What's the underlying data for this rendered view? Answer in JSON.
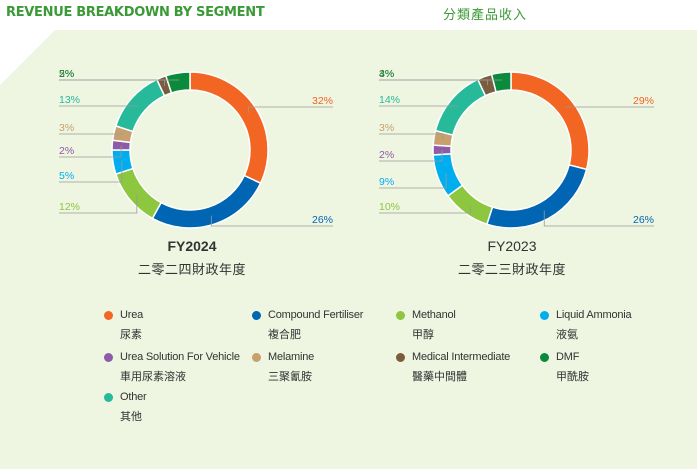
{
  "header": {
    "title_en": "REVENUE BREAKDOWN BY SEGMENT",
    "title_zh": "分類產品收入"
  },
  "chart_data": [
    {
      "type": "donut",
      "year_label": "FY2024",
      "year_label_zh": "二零二四財政年度",
      "order": [
        "Urea",
        "Compound Fertiliser",
        "Methanol",
        "Liquid Ammonia",
        "Urea Solution For Vehicle",
        "Melamine",
        "Other",
        "Medical Intermediate",
        "DMF"
      ],
      "values": [
        32,
        26,
        12,
        5,
        2,
        3,
        13,
        2,
        5
      ],
      "labels": [
        "32%",
        "26%",
        "12%",
        "5%",
        "2%",
        "3%",
        "13%",
        "2%",
        "5%"
      ]
    },
    {
      "type": "donut",
      "year_label": "FY2023",
      "year_label_zh": "二零二三財政年度",
      "order": [
        "Urea",
        "Compound Fertiliser",
        "Methanol",
        "Liquid Ammonia",
        "Urea Solution For Vehicle",
        "Melamine",
        "Other",
        "Medical Intermediate",
        "DMF"
      ],
      "values": [
        29,
        26,
        10,
        9,
        2,
        3,
        14,
        3,
        4
      ],
      "labels": [
        "29%",
        "26%",
        "10%",
        "9%",
        "2%",
        "3%",
        "14%",
        "3%",
        "4%"
      ]
    }
  ],
  "legend": [
    {
      "en": "Urea",
      "zh": "尿素",
      "color": "#f26522"
    },
    {
      "en": "Compound Fertiliser",
      "zh": "複合肥",
      "color": "#0066b3"
    },
    {
      "en": "Methanol",
      "zh": "甲醇",
      "color": "#8dc63f"
    },
    {
      "en": "Liquid Ammonia",
      "zh": "液氨",
      "color": "#00aeef"
    },
    {
      "en": "Urea Solution For Vehicle",
      "zh": "車用尿素溶液",
      "color": "#8e5ba6"
    },
    {
      "en": "Melamine",
      "zh": "三聚氰胺",
      "color": "#c8a06e"
    },
    {
      "en": "Medical Intermediate",
      "zh": "醫藥中間體",
      "color": "#7a5c3e"
    },
    {
      "en": "DMF",
      "zh": "甲酰胺",
      "color": "#0a8a3a"
    },
    {
      "en": "Other",
      "zh": "其他",
      "color": "#26b99a"
    }
  ]
}
